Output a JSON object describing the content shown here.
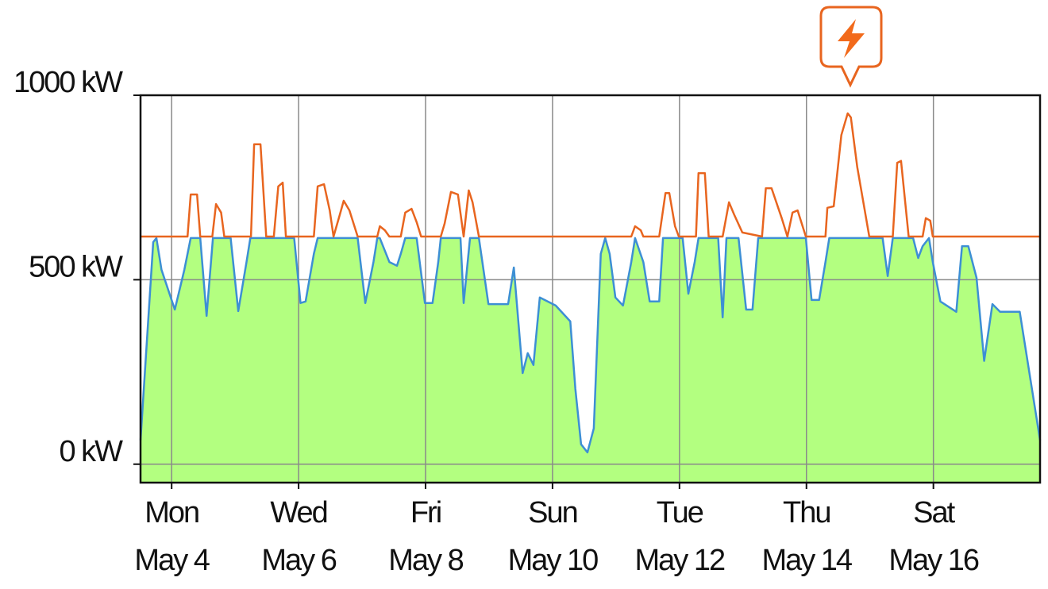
{
  "chart_data": {
    "type": "line",
    "xlim": [
      3.51,
      17.68
    ],
    "ylim": [
      -50,
      1000
    ],
    "yticks": [
      {
        "value": 0,
        "label": "0 kW"
      },
      {
        "value": 500,
        "label": "500 kW"
      },
      {
        "value": 1000,
        "label": "1000 kW"
      }
    ],
    "xticks": [
      {
        "value": 4,
        "label": "Mon",
        "date": "May 4"
      },
      {
        "value": 6,
        "label": "Wed",
        "date": "May 6"
      },
      {
        "value": 8,
        "label": "Fri",
        "date": "May 8"
      },
      {
        "value": 10,
        "label": "Sun",
        "date": "May 10"
      },
      {
        "value": 12,
        "label": "Tue",
        "date": "May 12"
      },
      {
        "value": 14,
        "label": "Thu",
        "date": "May 14"
      },
      {
        "value": 16,
        "label": "Sat",
        "date": "May 16"
      }
    ],
    "grid": true,
    "series": [
      {
        "color": "#3d8fd4",
        "fill": "#b3ff80",
        "x": [
          3.51,
          3.71,
          3.76,
          3.84,
          4.05,
          4.2,
          4.3,
          4.45,
          4.55,
          4.65,
          4.93,
          5.05,
          5.18,
          5.24,
          5.93,
          6.03,
          6.11,
          6.24,
          6.3,
          6.93,
          7.05,
          7.18,
          7.24,
          7.28,
          7.43,
          7.55,
          7.61,
          7.68,
          7.86,
          7.99,
          8.11,
          8.2,
          8.24,
          8.55,
          8.6,
          8.7,
          8.84,
          8.99,
          9.3,
          9.39,
          9.53,
          9.61,
          9.7,
          9.8,
          10.05,
          10.28,
          10.36,
          10.45,
          10.55,
          10.65,
          10.76,
          10.83,
          10.9,
          10.99,
          11.11,
          11.24,
          11.3,
          11.43,
          11.53,
          11.68,
          11.74,
          12.05,
          12.14,
          12.24,
          12.3,
          12.61,
          12.68,
          12.74,
          12.93,
          13.05,
          13.15,
          13.24,
          13.99,
          14.08,
          14.2,
          14.3,
          14.36,
          15.2,
          15.28,
          15.36,
          15.68,
          15.76,
          15.83,
          15.93,
          15.99,
          16.11,
          16.36,
          16.45,
          16.55,
          16.68,
          16.8,
          16.93,
          17.05,
          17.36,
          17.68
        ],
        "values": [
          65,
          602,
          613,
          527,
          419,
          527,
          613,
          613,
          402,
          613,
          613,
          415,
          548,
          613,
          613,
          437,
          441,
          570,
          613,
          613,
          437,
          548,
          613,
          613,
          548,
          538,
          570,
          613,
          613,
          437,
          437,
          548,
          613,
          613,
          437,
          613,
          613,
          434,
          434,
          533,
          247,
          301,
          269,
          452,
          430,
          387,
          204,
          54,
          32,
          97,
          570,
          613,
          570,
          452,
          430,
          548,
          613,
          548,
          441,
          441,
          613,
          613,
          462,
          548,
          613,
          613,
          398,
          613,
          613,
          419,
          419,
          613,
          613,
          445,
          445,
          548,
          613,
          613,
          510,
          613,
          613,
          559,
          591,
          613,
          548,
          441,
          413,
          591,
          591,
          505,
          280,
          434,
          413,
          413,
          65
        ]
      },
      {
        "color": "#e8651f",
        "x": [
          3.51,
          4.25,
          4.3,
          4.4,
          4.45,
          4.64,
          4.7,
          4.78,
          4.83,
          5.25,
          5.3,
          5.4,
          5.49,
          5.61,
          5.68,
          5.75,
          5.8,
          6.24,
          6.3,
          6.4,
          6.49,
          6.55,
          6.65,
          6.71,
          6.8,
          6.93,
          7.24,
          7.28,
          7.36,
          7.43,
          7.61,
          7.68,
          7.78,
          7.86,
          7.93,
          8.24,
          8.3,
          8.4,
          8.51,
          8.6,
          8.68,
          8.74,
          8.84,
          11.24,
          11.3,
          11.39,
          11.43,
          11.68,
          11.78,
          11.84,
          11.93,
          11.99,
          12.26,
          12.3,
          12.4,
          12.46,
          12.68,
          12.78,
          12.86,
          12.99,
          13.3,
          13.36,
          13.45,
          13.61,
          13.7,
          13.78,
          13.86,
          13.99,
          14.3,
          14.33,
          14.43,
          14.55,
          14.65,
          14.7,
          14.8,
          14.99,
          15.36,
          15.43,
          15.49,
          15.61,
          15.83,
          15.88,
          15.95,
          15.99,
          17.68
        ],
        "values": [
          617,
          617,
          731,
          731,
          617,
          617,
          705,
          682,
          617,
          617,
          867,
          867,
          617,
          617,
          753,
          763,
          617,
          617,
          753,
          759,
          688,
          617,
          677,
          714,
          688,
          617,
          617,
          645,
          634,
          617,
          617,
          682,
          692,
          656,
          617,
          617,
          652,
          738,
          731,
          617,
          742,
          710,
          617,
          617,
          645,
          634,
          617,
          617,
          735,
          735,
          645,
          617,
          617,
          789,
          789,
          617,
          617,
          710,
          677,
          628,
          617,
          748,
          748,
          667,
          617,
          682,
          688,
          617,
          617,
          695,
          699,
          892,
          951,
          940,
          806,
          617,
          617,
          817,
          822,
          617,
          617,
          667,
          660,
          617,
          617
        ]
      }
    ]
  }
}
